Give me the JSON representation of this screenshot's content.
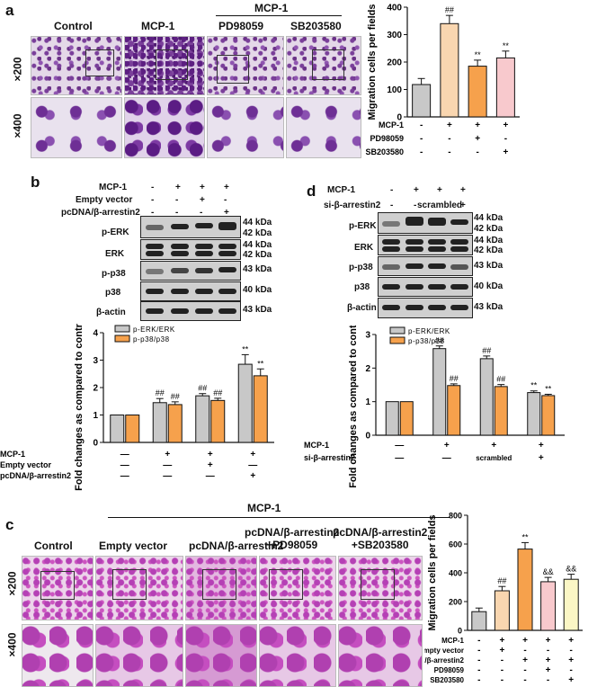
{
  "panel_a": {
    "label": "a",
    "col_labels": [
      "Control",
      "MCP-1",
      "PD98059",
      "SB203580"
    ],
    "group_label": "MCP-1",
    "row_labels": [
      "×200",
      "×400"
    ]
  },
  "panel_b": {
    "label": "b",
    "treat_labels": [
      "MCP-1",
      "Empty vector",
      "pcDNA/β-arrestin2"
    ],
    "treat_signs": [
      [
        "-",
        "+",
        "+",
        "+"
      ],
      [
        "-",
        "-",
        "+",
        "-"
      ],
      [
        "-",
        "-",
        "-",
        "+"
      ]
    ],
    "blot_labels": [
      "p-ERK",
      "ERK",
      "p-p38",
      "p38",
      "β-actin"
    ],
    "kda_labels": [
      "44 kDa",
      "42 kDa",
      "44 kDa",
      "42 kDa",
      "43 kDa",
      "40 kDa",
      "43 kDa"
    ]
  },
  "panel_c": {
    "label": "c",
    "group_label": "MCP-1",
    "col_labels": [
      "Control",
      "Empty vector",
      "pcDNA/β-arrestin2",
      "pcDNA/β-arrestin2\n+PD98059",
      "pcDNA/β-arrestin2\n+SB203580"
    ],
    "row_labels": [
      "×200",
      "×400"
    ]
  },
  "panel_d": {
    "label": "d",
    "treat_labels": [
      "MCP-1",
      "si-β-arrestin2"
    ],
    "treat_signs": [
      [
        "-",
        "+",
        "+",
        "+"
      ],
      [
        "-",
        "-",
        "scrambled",
        "+"
      ]
    ],
    "blot_labels": [
      "p-ERK",
      "ERK",
      "p-p38",
      "p38",
      "β-actin"
    ],
    "kda_labels": [
      "44 kDa",
      "42 kDa",
      "44 kDa",
      "42 kDa",
      "43 kDa",
      "40 kDa",
      "43 kDa"
    ]
  },
  "colors": {
    "gray": "#c8c8c8",
    "orange": "#f6a14c",
    "peach": "#f9c98e",
    "pink": "#f8c9cd",
    "yellow": "#fbf6c5"
  },
  "chart_data": [
    {
      "id": "a",
      "type": "bar",
      "ylabel": "Migration cells per fields",
      "ylim": [
        0,
        400
      ],
      "yticks": [
        0,
        100,
        200,
        300,
        400
      ],
      "values": [
        118,
        340,
        185,
        215
      ],
      "errors": [
        22,
        30,
        22,
        25
      ],
      "bar_colors": [
        "#c8c8c8",
        "#f9d6b0",
        "#f6a14c",
        "#f8c9cd"
      ],
      "annotations": [
        "",
        "##",
        "**",
        "**"
      ],
      "treatment_rows": [
        {
          "name": "MCP-1",
          "signs": [
            "-",
            "+",
            "+",
            "+"
          ]
        },
        {
          "name": "PD98059",
          "signs": [
            "-",
            "-",
            "+",
            "-"
          ]
        },
        {
          "name": "SB203580",
          "signs": [
            "-",
            "-",
            "-",
            "+"
          ]
        }
      ]
    },
    {
      "id": "b",
      "type": "bar",
      "ylabel": "Fold changes as compared to control group",
      "ylim": [
        0,
        4
      ],
      "yticks": [
        0,
        1,
        2,
        3,
        4
      ],
      "series": [
        {
          "name": "p-ERK/ERK",
          "values": [
            1.0,
            1.45,
            1.7,
            2.85
          ],
          "errors": [
            0,
            0.15,
            0.08,
            0.35
          ],
          "annotations": [
            "",
            "##",
            "##",
            "**"
          ],
          "color": "#c8c8c8"
        },
        {
          "name": "p-p38/p38",
          "values": [
            1.0,
            1.38,
            1.53,
            2.43
          ],
          "errors": [
            0,
            0.1,
            0.08,
            0.25
          ],
          "annotations": [
            "",
            "##",
            "##",
            "**"
          ],
          "color": "#f6a14c"
        }
      ],
      "treatment_rows": [
        {
          "name": "MCP-1",
          "signs": [
            "—",
            "+",
            "+",
            "+"
          ]
        },
        {
          "name": "Empty vector",
          "signs": [
            "—",
            "—",
            "+",
            "—"
          ]
        },
        {
          "name": "pcDNA/β-arrestin2",
          "signs": [
            "—",
            "—",
            "—",
            "+"
          ]
        }
      ]
    },
    {
      "id": "d",
      "type": "bar",
      "ylabel": "Fold changes as compared to control group",
      "ylim": [
        0,
        3
      ],
      "yticks": [
        0,
        1,
        2,
        3
      ],
      "series": [
        {
          "name": "p-ERK/ERK",
          "values": [
            1.0,
            2.58,
            2.28,
            1.27
          ],
          "errors": [
            0,
            0.08,
            0.08,
            0.05
          ],
          "annotations": [
            "",
            "##",
            "##",
            "**"
          ],
          "color": "#c8c8c8"
        },
        {
          "name": "p-p38/p38",
          "values": [
            1.0,
            1.48,
            1.45,
            1.18
          ],
          "errors": [
            0,
            0.05,
            0.06,
            0.04
          ],
          "annotations": [
            "",
            "##",
            "##",
            "**"
          ],
          "color": "#f6a14c"
        }
      ],
      "treatment_rows": [
        {
          "name": "MCP-1",
          "signs": [
            "—",
            "+",
            "+",
            "+"
          ]
        },
        {
          "name": "si-β-arrestin2",
          "signs": [
            "—",
            "—",
            "scrambled",
            "+"
          ]
        }
      ]
    },
    {
      "id": "c",
      "type": "bar",
      "ylabel": "Migration cells per fields",
      "ylim": [
        0,
        800
      ],
      "yticks": [
        0,
        200,
        400,
        600,
        800
      ],
      "values": [
        130,
        275,
        565,
        338,
        355
      ],
      "errors": [
        25,
        30,
        45,
        30,
        35
      ],
      "bar_colors": [
        "#c8c8c8",
        "#f9d6b0",
        "#f6a14c",
        "#f8c9cd",
        "#fbf6c5"
      ],
      "annotations": [
        "",
        "##",
        "**",
        "&&",
        "&&"
      ],
      "treatment_rows": [
        {
          "name": "MCP-1",
          "signs": [
            "-",
            "+",
            "+",
            "+",
            "+"
          ]
        },
        {
          "name": "Empty vector",
          "signs": [
            "-",
            "+",
            "-",
            "-",
            "-"
          ]
        },
        {
          "name": "pcDNA/β-arrestin2",
          "signs": [
            "-",
            "-",
            "+",
            "+",
            "+"
          ]
        },
        {
          "name": "PD98059",
          "signs": [
            "-",
            "-",
            "-",
            "+",
            "-"
          ]
        },
        {
          "name": "SB203580",
          "signs": [
            "-",
            "-",
            "-",
            "-",
            "+"
          ]
        }
      ]
    }
  ]
}
